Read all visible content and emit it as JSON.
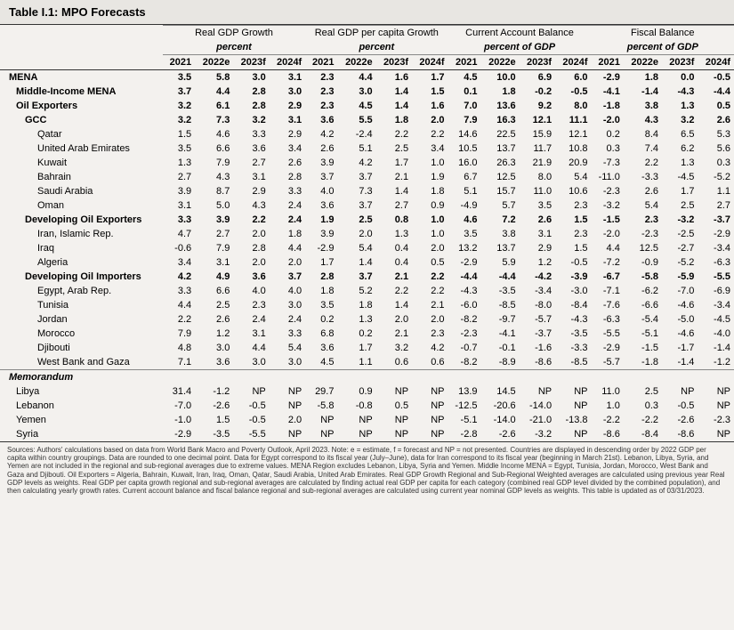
{
  "title": "Table I.1: MPO Forecasts",
  "groupHeaders": [
    "Real GDP Growth",
    "Real GDP per capita Growth",
    "Current Account Balance",
    "Fiscal Balance"
  ],
  "subHeaders": [
    "percent",
    "percent",
    "percent of GDP",
    "percent of GDP"
  ],
  "yearCols": [
    "2021",
    "2022e",
    "2023f",
    "2024f",
    "2021",
    "2022e",
    "2023f",
    "2024f",
    "2021",
    "2022e",
    "2023f",
    "2024f",
    "2021",
    "2022e",
    "2023f",
    "2024f"
  ],
  "memLabel": "Memorandum",
  "rows": [
    {
      "label": "MENA",
      "bold": true,
      "indent": 0,
      "vals": [
        "3.5",
        "5.8",
        "3.0",
        "3.1",
        "2.3",
        "4.4",
        "1.6",
        "1.7",
        "4.5",
        "10.0",
        "6.9",
        "6.0",
        "-2.9",
        "1.8",
        "0.0",
        "-0.5"
      ]
    },
    {
      "label": "Middle-Income MENA",
      "bold": true,
      "indent": 1,
      "vals": [
        "3.7",
        "4.4",
        "2.8",
        "3.0",
        "2.3",
        "3.0",
        "1.4",
        "1.5",
        "0.1",
        "1.8",
        "-0.2",
        "-0.5",
        "-4.1",
        "-1.4",
        "-4.3",
        "-4.4"
      ]
    },
    {
      "label": "Oil Exporters",
      "bold": true,
      "indent": 1,
      "vals": [
        "3.2",
        "6.1",
        "2.8",
        "2.9",
        "2.3",
        "4.5",
        "1.4",
        "1.6",
        "7.0",
        "13.6",
        "9.2",
        "8.0",
        "-1.8",
        "3.8",
        "1.3",
        "0.5"
      ]
    },
    {
      "label": "GCC",
      "bold": true,
      "indent": 2,
      "vals": [
        "3.2",
        "7.3",
        "3.2",
        "3.1",
        "3.6",
        "5.5",
        "1.8",
        "2.0",
        "7.9",
        "16.3",
        "12.1",
        "11.1",
        "-2.0",
        "4.3",
        "3.2",
        "2.6"
      ]
    },
    {
      "label": "Qatar",
      "bold": false,
      "indent": 3,
      "vals": [
        "1.5",
        "4.6",
        "3.3",
        "2.9",
        "4.2",
        "-2.4",
        "2.2",
        "2.2",
        "14.6",
        "22.5",
        "15.9",
        "12.1",
        "0.2",
        "8.4",
        "6.5",
        "5.3"
      ]
    },
    {
      "label": "United Arab Emirates",
      "bold": false,
      "indent": 3,
      "vals": [
        "3.5",
        "6.6",
        "3.6",
        "3.4",
        "2.6",
        "5.1",
        "2.5",
        "3.4",
        "10.5",
        "13.7",
        "11.7",
        "10.8",
        "0.3",
        "7.4",
        "6.2",
        "5.6"
      ]
    },
    {
      "label": "Kuwait",
      "bold": false,
      "indent": 3,
      "vals": [
        "1.3",
        "7.9",
        "2.7",
        "2.6",
        "3.9",
        "4.2",
        "1.7",
        "1.0",
        "16.0",
        "26.3",
        "21.9",
        "20.9",
        "-7.3",
        "2.2",
        "1.3",
        "0.3"
      ]
    },
    {
      "label": "Bahrain",
      "bold": false,
      "indent": 3,
      "vals": [
        "2.7",
        "4.3",
        "3.1",
        "2.8",
        "3.7",
        "3.7",
        "2.1",
        "1.9",
        "6.7",
        "12.5",
        "8.0",
        "5.4",
        "-11.0",
        "-3.3",
        "-4.5",
        "-5.2"
      ]
    },
    {
      "label": "Saudi Arabia",
      "bold": false,
      "indent": 3,
      "vals": [
        "3.9",
        "8.7",
        "2.9",
        "3.3",
        "4.0",
        "7.3",
        "1.4",
        "1.8",
        "5.1",
        "15.7",
        "11.0",
        "10.6",
        "-2.3",
        "2.6",
        "1.7",
        "1.1"
      ]
    },
    {
      "label": "Oman",
      "bold": false,
      "indent": 3,
      "vals": [
        "3.1",
        "5.0",
        "4.3",
        "2.4",
        "3.6",
        "3.7",
        "2.7",
        "0.9",
        "-4.9",
        "5.7",
        "3.5",
        "2.3",
        "-3.2",
        "5.4",
        "2.5",
        "2.7"
      ]
    },
    {
      "label": "Developing Oil Exporters",
      "bold": true,
      "indent": 2,
      "vals": [
        "3.3",
        "3.9",
        "2.2",
        "2.4",
        "1.9",
        "2.5",
        "0.8",
        "1.0",
        "4.6",
        "7.2",
        "2.6",
        "1.5",
        "-1.5",
        "2.3",
        "-3.2",
        "-3.7"
      ]
    },
    {
      "label": "Iran, Islamic Rep.",
      "bold": false,
      "indent": 3,
      "vals": [
        "4.7",
        "2.7",
        "2.0",
        "1.8",
        "3.9",
        "2.0",
        "1.3",
        "1.0",
        "3.5",
        "3.8",
        "3.1",
        "2.3",
        "-2.0",
        "-2.3",
        "-2.5",
        "-2.9"
      ]
    },
    {
      "label": "Iraq",
      "bold": false,
      "indent": 3,
      "vals": [
        "-0.6",
        "7.9",
        "2.8",
        "4.4",
        "-2.9",
        "5.4",
        "0.4",
        "2.0",
        "13.2",
        "13.7",
        "2.9",
        "1.5",
        "4.4",
        "12.5",
        "-2.7",
        "-3.4"
      ]
    },
    {
      "label": "Algeria",
      "bold": false,
      "indent": 3,
      "vals": [
        "3.4",
        "3.1",
        "2.0",
        "2.0",
        "1.7",
        "1.4",
        "0.4",
        "0.5",
        "-2.9",
        "5.9",
        "1.2",
        "-0.5",
        "-7.2",
        "-0.9",
        "-5.2",
        "-6.3"
      ]
    },
    {
      "label": "Developing Oil Importers",
      "bold": true,
      "indent": 2,
      "vals": [
        "4.2",
        "4.9",
        "3.6",
        "3.7",
        "2.8",
        "3.7",
        "2.1",
        "2.2",
        "-4.4",
        "-4.4",
        "-4.2",
        "-3.9",
        "-6.7",
        "-5.8",
        "-5.9",
        "-5.5"
      ]
    },
    {
      "label": "Egypt, Arab Rep.",
      "bold": false,
      "indent": 3,
      "vals": [
        "3.3",
        "6.6",
        "4.0",
        "4.0",
        "1.8",
        "5.2",
        "2.2",
        "2.2",
        "-4.3",
        "-3.5",
        "-3.4",
        "-3.0",
        "-7.1",
        "-6.2",
        "-7.0",
        "-6.9"
      ]
    },
    {
      "label": "Tunisia",
      "bold": false,
      "indent": 3,
      "vals": [
        "4.4",
        "2.5",
        "2.3",
        "3.0",
        "3.5",
        "1.8",
        "1.4",
        "2.1",
        "-6.0",
        "-8.5",
        "-8.0",
        "-8.4",
        "-7.6",
        "-6.6",
        "-4.6",
        "-3.4"
      ]
    },
    {
      "label": "Jordan",
      "bold": false,
      "indent": 3,
      "vals": [
        "2.2",
        "2.6",
        "2.4",
        "2.4",
        "0.2",
        "1.3",
        "2.0",
        "2.0",
        "-8.2",
        "-9.7",
        "-5.7",
        "-4.3",
        "-6.3",
        "-5.4",
        "-5.0",
        "-4.5"
      ]
    },
    {
      "label": "Morocco",
      "bold": false,
      "indent": 3,
      "vals": [
        "7.9",
        "1.2",
        "3.1",
        "3.3",
        "6.8",
        "0.2",
        "2.1",
        "2.3",
        "-2.3",
        "-4.1",
        "-3.7",
        "-3.5",
        "-5.5",
        "-5.1",
        "-4.6",
        "-4.0"
      ]
    },
    {
      "label": "Djibouti",
      "bold": false,
      "indent": 3,
      "vals": [
        "4.8",
        "3.0",
        "4.4",
        "5.4",
        "3.6",
        "1.7",
        "3.2",
        "4.2",
        "-0.7",
        "-0.1",
        "-1.6",
        "-3.3",
        "-2.9",
        "-1.5",
        "-1.7",
        "-1.4"
      ]
    },
    {
      "label": "West Bank and Gaza",
      "bold": false,
      "indent": 3,
      "vals": [
        "7.1",
        "3.6",
        "3.0",
        "3.0",
        "4.5",
        "1.1",
        "0.6",
        "0.6",
        "-8.2",
        "-8.9",
        "-8.6",
        "-8.5",
        "-5.7",
        "-1.8",
        "-1.4",
        "-1.2"
      ]
    }
  ],
  "memRows": [
    {
      "label": "Libya",
      "bold": false,
      "indent": 1,
      "vals": [
        "31.4",
        "-1.2",
        "NP",
        "NP",
        "29.7",
        "0.9",
        "NP",
        "NP",
        "13.9",
        "14.5",
        "NP",
        "NP",
        "11.0",
        "2.5",
        "NP",
        "NP"
      ]
    },
    {
      "label": "Lebanon",
      "bold": false,
      "indent": 1,
      "vals": [
        "-7.0",
        "-2.6",
        "-0.5",
        "NP",
        "-5.8",
        "-0.8",
        "0.5",
        "NP",
        "-12.5",
        "-20.6",
        "-14.0",
        "NP",
        "1.0",
        "0.3",
        "-0.5",
        "NP"
      ]
    },
    {
      "label": "Yemen",
      "bold": false,
      "indent": 1,
      "vals": [
        "-1.0",
        "1.5",
        "-0.5",
        "2.0",
        "NP",
        "NP",
        "NP",
        "NP",
        "-5.1",
        "-14.0",
        "-21.0",
        "-13.8",
        "-2.2",
        "-2.2",
        "-2.6",
        "-2.3"
      ]
    },
    {
      "label": "Syria",
      "bold": false,
      "indent": 1,
      "vals": [
        "-2.9",
        "-3.5",
        "-5.5",
        "NP",
        "NP",
        "NP",
        "NP",
        "NP",
        "-2.8",
        "-2.6",
        "-3.2",
        "NP",
        "-8.6",
        "-8.4",
        "-8.6",
        "NP"
      ]
    }
  ],
  "footnote": "Sources: Authors' calculations based on data from World Bank Macro and Poverty Outlook, April 2023.\nNote: e = estimate, f = forecast and NP = not presented. Countries are displayed in descending order by 2022 GDP per capita within country groupings. Data are rounded to one decimal point. Data for Egypt correspond to its fiscal year (July–June), data for Iran correspond to its fiscal year (beginning in March 21st). Lebanon, Libya, Syria, and Yemen are not included in the regional and sub-regional averages due to extreme values. MENA Region excludes Lebanon, Libya, Syria and Yemen. Middle Income MENA = Egypt, Tunisia, Jordan, Morocco, West Bank and Gaza and Djibouti. Oil Exporters = Algeria, Bahrain, Kuwait, Iran, Iraq, Oman, Qatar, Saudi Arabia, United Arab Emirates. Real GDP Growth Regional and Sub-Regional Weighted averages are calculated using previous year Real GDP levels as weights. Real GDP per capita growth regional and sub-regional averages are calculated by finding actual real GDP per capita for each category (combined real GDP level divided by the combined population), and then calculating yearly growth rates. Current account balance and fiscal balance regional and sub-regional averages are calculated using current year nominal GDP levels as weights. This table is updated as of 03/31/2023.",
  "colors": {
    "bg": "#f3f1ee",
    "headerBg": "#e8e6e2",
    "rule": "#333333",
    "subRule": "#888888",
    "text": "#000000"
  },
  "font": {
    "family": "Segoe UI, Arial, sans-serif",
    "bodySize": 11,
    "titleSize": 13,
    "footSize": 8
  }
}
